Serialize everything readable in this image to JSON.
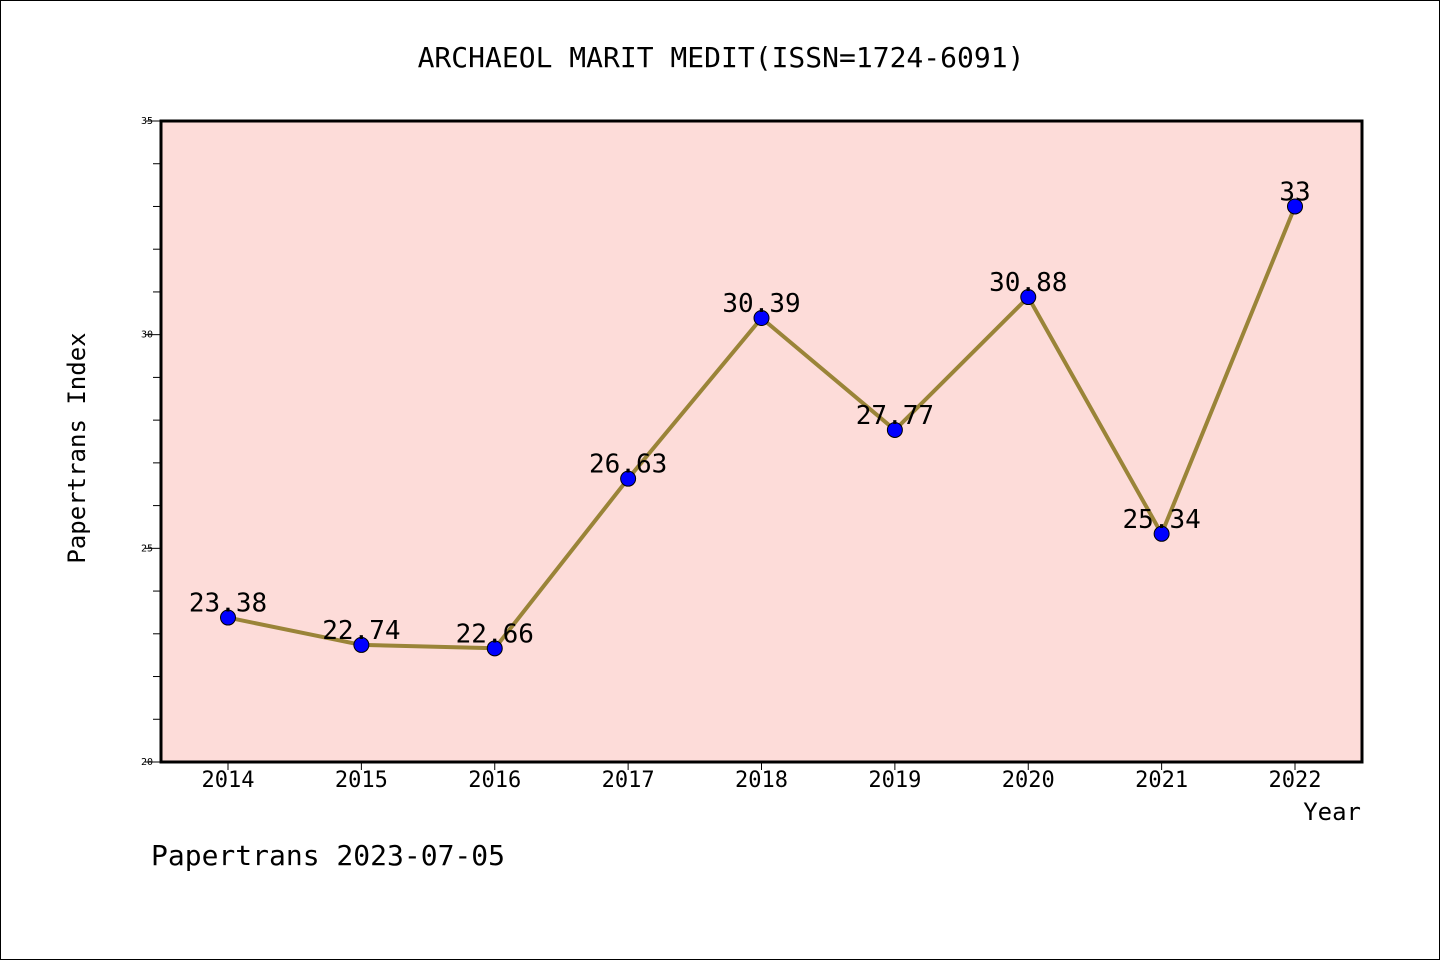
{
  "chart_data": {
    "type": "line",
    "title": "ARCHAEOL MARIT MEDIT(ISSN=1724-6091)",
    "xlabel": "Year",
    "ylabel": "Papertrans Index",
    "categories": [
      "2014",
      "2015",
      "2016",
      "2017",
      "2018",
      "2019",
      "2020",
      "2021",
      "2022"
    ],
    "series": [
      {
        "values": [
          23.38,
          22.74,
          22.66,
          26.63,
          30.39,
          27.77,
          30.88,
          25.34,
          33
        ],
        "labels": [
          "23.38",
          "22.74",
          "22.66",
          "26.63",
          "30.39",
          "27.77",
          "30.88",
          "25.34",
          "33"
        ]
      }
    ],
    "ylim": [
      20,
      35
    ],
    "yticks": [
      "20",
      "25",
      "30",
      "35"
    ],
    "grid": false,
    "colors": {
      "plot_background": "#fddcd9",
      "line": "#9a8438",
      "marker": "#0000ff"
    }
  },
  "footer": "Papertrans 2023-07-05"
}
